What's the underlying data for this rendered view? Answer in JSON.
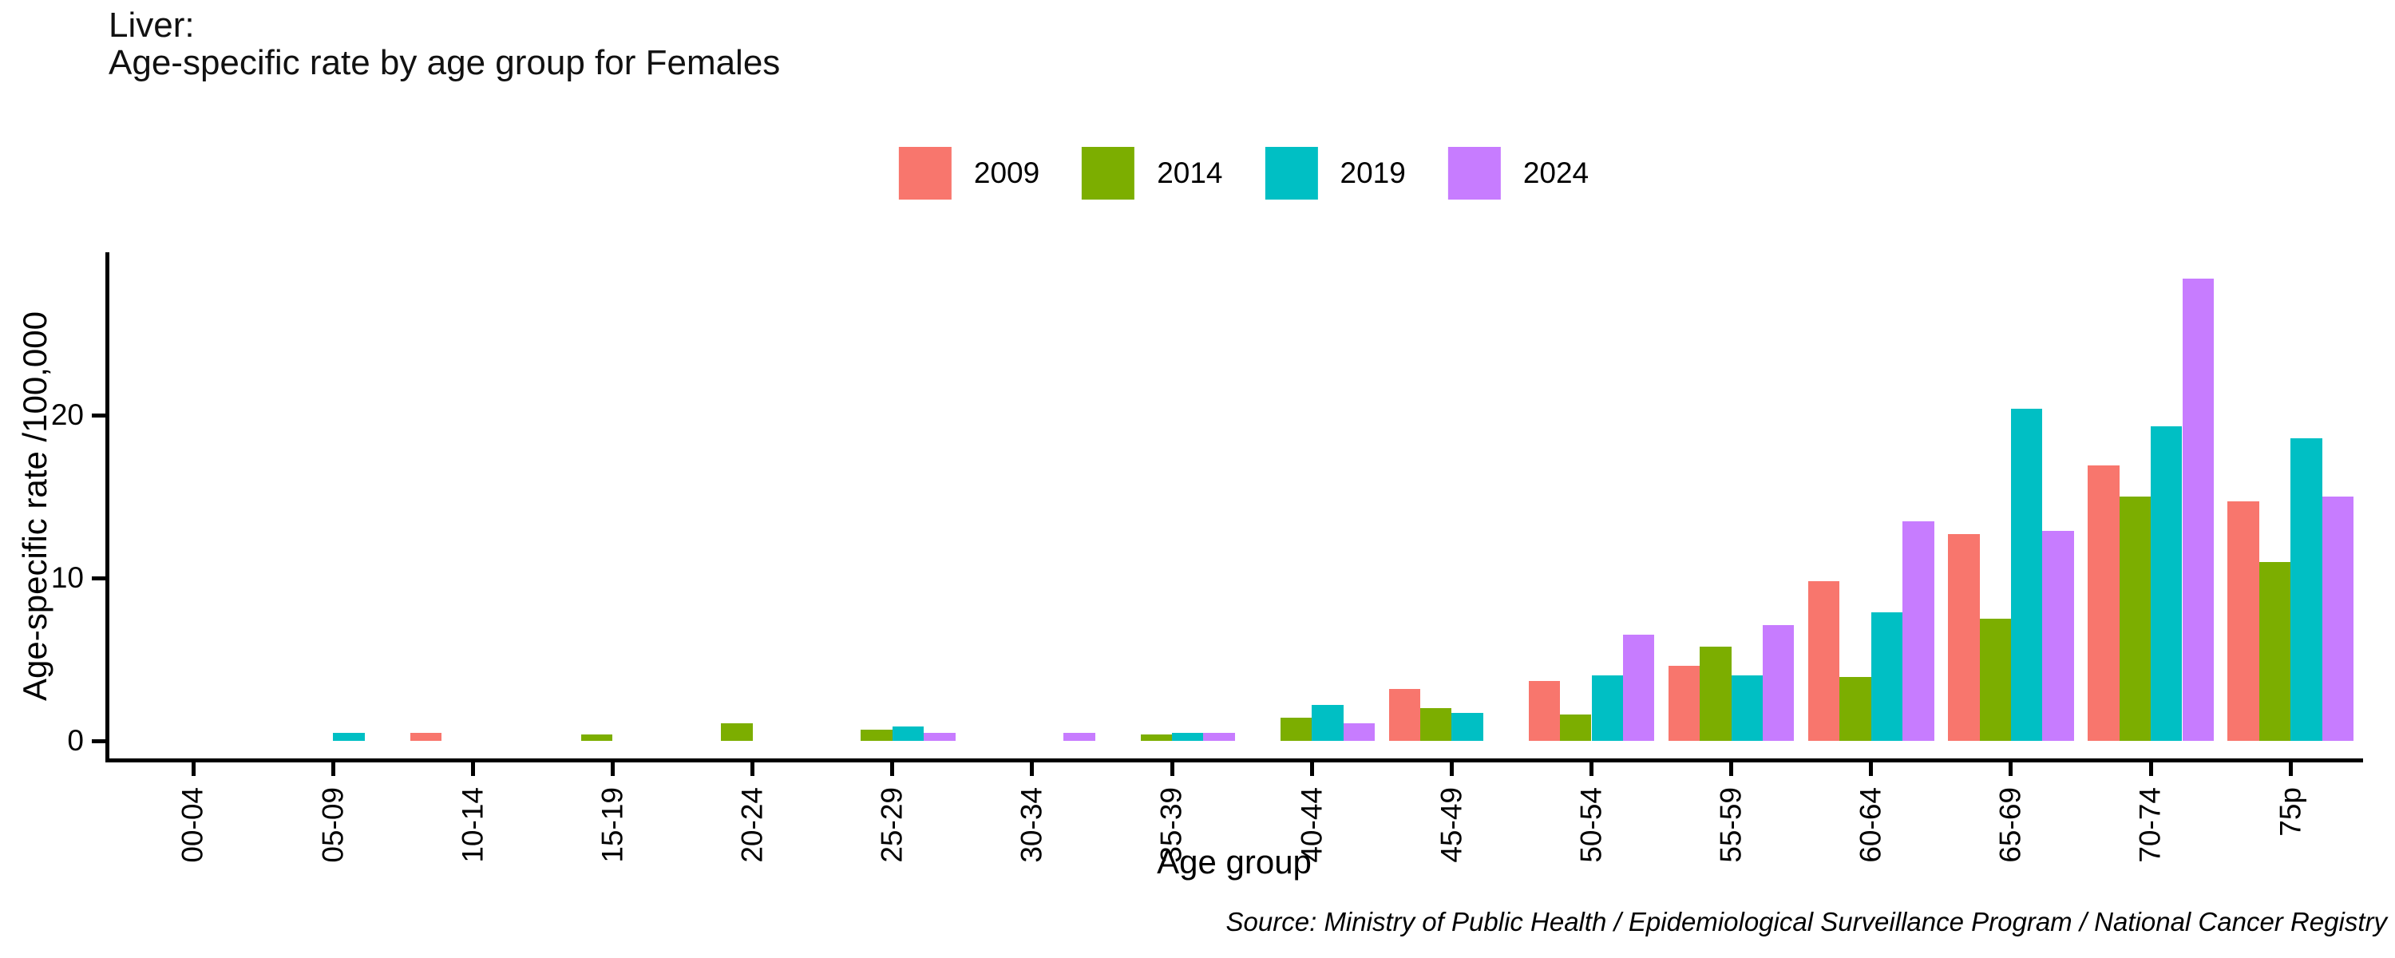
{
  "title": {
    "line1": "Liver:",
    "line2": "Age-specific rate by age group for Females"
  },
  "legend": {
    "items": [
      {
        "label": "2009",
        "color": "#F8766D"
      },
      {
        "label": "2014",
        "color": "#7CAE00"
      },
      {
        "label": "2019",
        "color": "#00BFC4"
      },
      {
        "label": "2024",
        "color": "#C77CFF"
      }
    ]
  },
  "axes": {
    "y_label": "Age-specific rate /100,000",
    "x_label": "Age group",
    "y_ticks": [
      0,
      10,
      20
    ]
  },
  "source": "Source: Ministry of Public Health / Epidemiological Surveillance Program / National Cancer Registry",
  "chart_data": {
    "type": "bar",
    "title": "Liver: Age-specific rate by age group for Females",
    "xlabel": "Age group",
    "ylabel": "Age-specific rate /100,000",
    "ylim": [
      0,
      30
    ],
    "grid": false,
    "legend_position": "top",
    "categories": [
      "00-04",
      "05-09",
      "10-14",
      "15-19",
      "20-24",
      "25-29",
      "30-34",
      "35-39",
      "40-44",
      "45-49",
      "50-54",
      "55-59",
      "60-64",
      "65-69",
      "70-74",
      "75p"
    ],
    "series": [
      {
        "name": "2009",
        "color": "#F8766D",
        "values": [
          0,
          0,
          0.5,
          0,
          0,
          0,
          0,
          0,
          0,
          3.2,
          3.7,
          4.6,
          9.8,
          12.7,
          16.9,
          14.7
        ]
      },
      {
        "name": "2014",
        "color": "#7CAE00",
        "values": [
          0,
          0,
          0,
          0.4,
          1.1,
          0.7,
          0,
          0.4,
          1.4,
          2.0,
          1.6,
          5.8,
          3.9,
          7.5,
          15.0,
          11.0
        ]
      },
      {
        "name": "2019",
        "color": "#00BFC4",
        "values": [
          0,
          0.5,
          0,
          0,
          0,
          0.9,
          0,
          0.5,
          2.2,
          1.7,
          4.0,
          4.0,
          7.9,
          20.4,
          19.3,
          18.6
        ]
      },
      {
        "name": "2024",
        "color": "#C77CFF",
        "values": [
          0,
          0,
          0,
          0,
          0,
          0.5,
          0.5,
          0.5,
          1.1,
          0,
          6.5,
          7.1,
          13.5,
          12.9,
          28.4,
          15.0
        ]
      }
    ]
  }
}
